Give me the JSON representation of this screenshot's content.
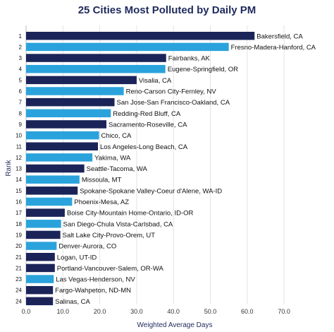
{
  "chart_data": {
    "type": "bar",
    "orientation": "horizontal",
    "title": "25 Cities Most Polluted by Daily PM",
    "xlabel": "Weighted Average Days",
    "ylabel": "Rank",
    "xlim": [
      0,
      80
    ],
    "xticks": [
      "0.0",
      "10.0",
      "20.0",
      "30.0",
      "40.0",
      "50.0",
      "60.0",
      "70.0"
    ],
    "xtick_values": [
      0,
      10,
      20,
      30,
      40,
      50,
      60,
      70
    ],
    "grid": true,
    "colors": {
      "dark": "#1b2459",
      "light": "#2aa3dc"
    },
    "bars": [
      {
        "rank": "1",
        "label": "Bakersfield, CA",
        "value": 62.0,
        "color": "dark"
      },
      {
        "rank": "2",
        "label": "Fresno-Madera-Hanford, CA",
        "value": 55.0,
        "color": "light"
      },
      {
        "rank": "3",
        "label": "Fairbanks, AK",
        "value": 38.0,
        "color": "dark"
      },
      {
        "rank": "4",
        "label": "Eugene-Springfield, OR",
        "value": 37.8,
        "color": "light"
      },
      {
        "rank": "5",
        "label": "Visalia, CA",
        "value": 30.0,
        "color": "dark"
      },
      {
        "rank": "6",
        "label": "Reno-Carson City-Fernley, NV",
        "value": 26.5,
        "color": "light"
      },
      {
        "rank": "7",
        "label": "San Jose-San Francisco-Oakland, CA",
        "value": 24.0,
        "color": "dark"
      },
      {
        "rank": "8",
        "label": "Redding-Red Bluff, CA",
        "value": 23.0,
        "color": "light"
      },
      {
        "rank": "9",
        "label": "Sacramento-Roseville, CA",
        "value": 21.8,
        "color": "dark"
      },
      {
        "rank": "10",
        "label": "Chico, CA",
        "value": 19.8,
        "color": "light"
      },
      {
        "rank": "11",
        "label": "Los Angeles-Long Beach, CA",
        "value": 19.5,
        "color": "dark"
      },
      {
        "rank": "12",
        "label": "Yakima, WA",
        "value": 18.0,
        "color": "light"
      },
      {
        "rank": "13",
        "label": "Seattle-Tacoma, WA",
        "value": 15.8,
        "color": "dark"
      },
      {
        "rank": "14",
        "label": "Missoula, MT",
        "value": 14.5,
        "color": "light"
      },
      {
        "rank": "15",
        "label": "Spokane-Spokane Valley-Coeur d'Alene, WA-ID",
        "value": 14.0,
        "color": "dark"
      },
      {
        "rank": "16",
        "label": "Phoenix-Mesa, AZ",
        "value": 12.5,
        "color": "light"
      },
      {
        "rank": "17",
        "label": "Boise City-Mountain Home-Ontario, ID-OR",
        "value": 10.5,
        "color": "dark"
      },
      {
        "rank": "18",
        "label": "San Diego-Chula Vista-Carlsbad, CA",
        "value": 9.5,
        "color": "light"
      },
      {
        "rank": "19",
        "label": "Salt Lake City-Provo-Orem, UT",
        "value": 9.3,
        "color": "dark"
      },
      {
        "rank": "20",
        "label": "Denver-Aurora, CO",
        "value": 8.3,
        "color": "light"
      },
      {
        "rank": "21",
        "label": "Logan, UT-ID",
        "value": 7.8,
        "color": "dark"
      },
      {
        "rank": "21",
        "label": "Portland-Vancouver-Salem, OR-WA",
        "value": 7.8,
        "color": "dark"
      },
      {
        "rank": "23",
        "label": "Las Vegas-Henderson, NV",
        "value": 7.5,
        "color": "light"
      },
      {
        "rank": "24",
        "label": "Fargo-Wahpeton, ND-MN",
        "value": 7.3,
        "color": "dark"
      },
      {
        "rank": "24",
        "label": "Salinas, CA",
        "value": 7.3,
        "color": "dark"
      }
    ]
  }
}
